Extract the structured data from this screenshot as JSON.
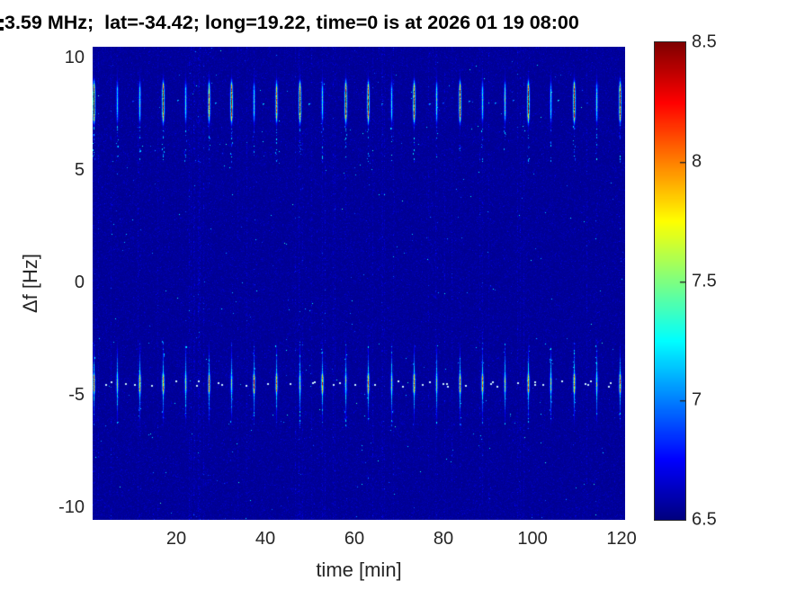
{
  "figure": {
    "background": "#ffffff"
  },
  "chart_data": {
    "type": "heatmap",
    "title": "3.59 MHz;  lat=-34.42; long=19.22, time=0 is at 2026 01 19 08:00",
    "xlabel": "time [min]",
    "ylabel": "Δf [Hz]",
    "xlim": [
      1.2,
      120.8
    ],
    "ylim": [
      -10.52,
      10.52
    ],
    "xticks": [
      20,
      40,
      60,
      80,
      100,
      120
    ],
    "yticks": [
      10,
      5,
      0,
      -5,
      -10
    ],
    "grid": false,
    "colormap": "jet",
    "colorbar": {
      "min": 6.5,
      "max": 8.5,
      "ticks": [
        8.5,
        8,
        7.5,
        7,
        6.5
      ],
      "position": "right",
      "tick_color": "#262626"
    },
    "background_level": 6.53,
    "noise": {
      "scale": 0.025,
      "bright_speckle_prob": 0.0012,
      "striped_columns": 40,
      "seed": 1337
    },
    "bands": [
      {
        "name": "upper-sideband",
        "center_hz": 8.1,
        "core_halfwidth_hz": 0.88,
        "tail_sigma_hz": 1.1,
        "tail_amp": 0.42,
        "trail_side": "below",
        "trail_len_hz": 1.6,
        "gap_dots_min": 0,
        "gap_dots_rand": 2,
        "pale_gap_dots": false,
        "streak_times_min": [
          1.5,
          6.6,
          11.8,
          16.9,
          22.0,
          27.2,
          32.3,
          37.4,
          42.5,
          47.7,
          52.8,
          57.9,
          63.1,
          68.2,
          73.3,
          78.4,
          83.6,
          88.7,
          93.8,
          99.0,
          104.1,
          109.2,
          114.3,
          119.5
        ],
        "streak_peaks": [
          8.45,
          7.25,
          7.35,
          8.4,
          7.3,
          7.9,
          8.4,
          7.3,
          7.9,
          8.35,
          7.3,
          8.4,
          8.3,
          7.25,
          8.35,
          7.35,
          8.25,
          7.3,
          7.4,
          8.35,
          7.25,
          8.4,
          7.35,
          8.3
        ]
      },
      {
        "name": "lower-sideband",
        "center_hz": -4.45,
        "core_halfwidth_hz": 0.5,
        "tail_sigma_hz": 1.25,
        "tail_amp": 0.78,
        "trail_side": "both",
        "trail_len_hz": 1.3,
        "gap_dots_min": 1,
        "gap_dots_rand": 3,
        "pale_gap_dots": true,
        "streak_times_min": [
          1.5,
          6.6,
          11.8,
          16.9,
          22.0,
          27.2,
          32.3,
          37.4,
          42.5,
          47.7,
          52.8,
          57.9,
          63.1,
          68.2,
          73.3,
          78.4,
          83.6,
          88.7,
          93.8,
          99.0,
          104.1,
          109.2,
          114.3,
          119.5
        ],
        "streak_peaks": [
          7.9,
          7.45,
          7.95,
          8.05,
          7.5,
          7.9,
          7.45,
          8.0,
          7.9,
          7.5,
          8.05,
          7.45,
          7.95,
          7.5,
          8.0,
          7.45,
          7.9,
          7.95,
          7.5,
          8.0,
          7.5,
          7.95,
          7.45,
          7.9
        ]
      }
    ]
  }
}
